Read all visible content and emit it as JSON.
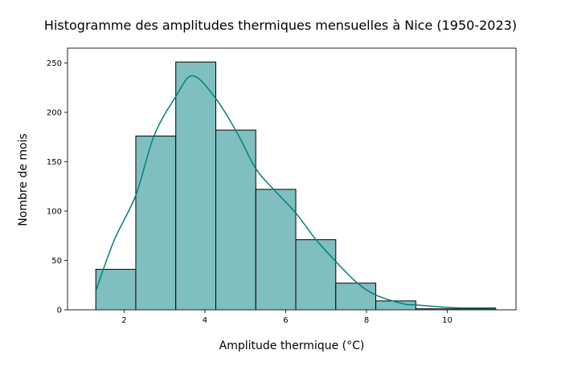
{
  "chart_data": {
    "type": "bar",
    "subtype": "histogram_with_kde",
    "title": "Histogramme des amplitudes thermiques mensuelles à Nice (1950-2023)",
    "xlabel": "Amplitude thermique (°C)",
    "ylabel": "Nombre de mois",
    "xlim": [
      0.6,
      11.7
    ],
    "ylim": [
      0,
      265
    ],
    "xticks": [
      2,
      4,
      6,
      8,
      10
    ],
    "yticks": [
      0,
      50,
      100,
      150,
      200,
      250
    ],
    "grid": false,
    "legend": null,
    "bin_edges": [
      1.3,
      2.29,
      3.28,
      4.27,
      5.26,
      6.25,
      7.24,
      8.23,
      9.22,
      10.21,
      11.2
    ],
    "categories": [
      "1.3–2.3",
      "2.3–3.3",
      "3.3–4.3",
      "4.3–5.3",
      "5.3–6.2",
      "6.2–7.2",
      "7.2–8.2",
      "8.2–9.2",
      "9.2–10.2",
      "10.2–11.2"
    ],
    "values": [
      41,
      176,
      251,
      182,
      122,
      71,
      27,
      9,
      1,
      1
    ],
    "kde": {
      "x": [
        1.3,
        1.75,
        2.29,
        2.74,
        3.28,
        3.7,
        4.27,
        4.8,
        5.26,
        5.7,
        6.25,
        6.75,
        7.24,
        7.75,
        8.23,
        8.92,
        9.22,
        10.21,
        11.2
      ],
      "y": [
        19,
        70,
        116,
        176,
        216,
        237,
        214,
        179,
        143,
        122,
        98,
        71,
        49,
        28,
        15,
        6,
        5,
        2,
        2
      ]
    },
    "colors": {
      "bar_fill": "#80bfbf",
      "bar_edge": "#000000",
      "kde_line": "#008080"
    }
  }
}
